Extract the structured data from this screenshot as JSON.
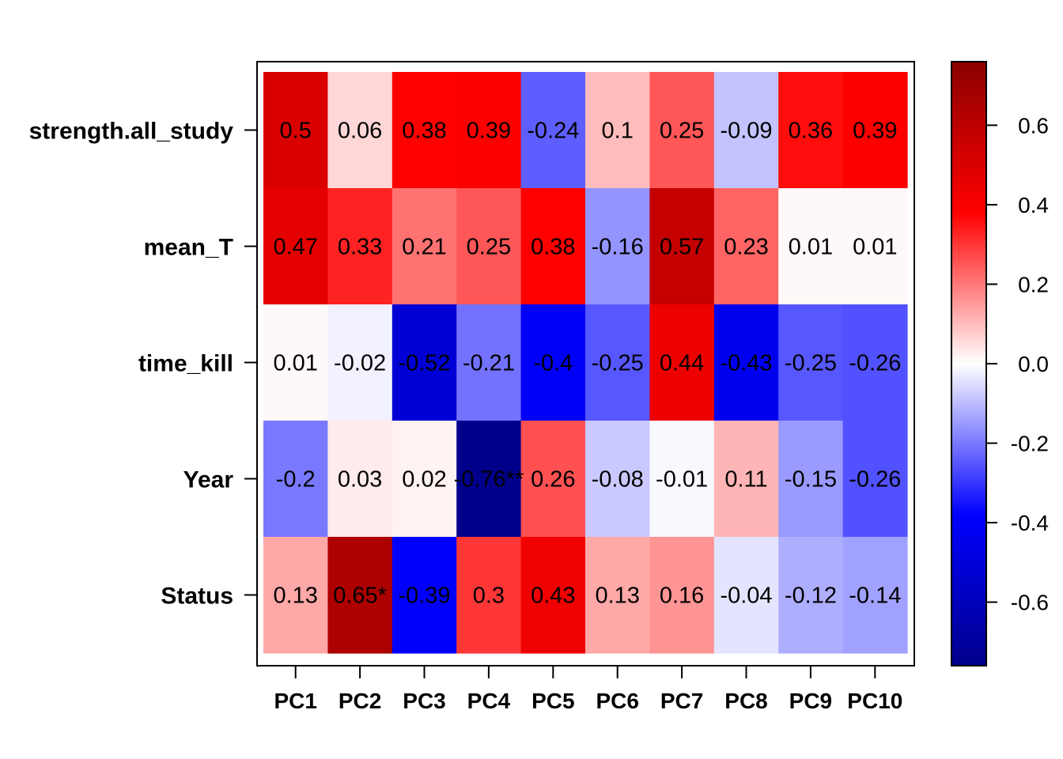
{
  "chart_data": {
    "type": "heatmap",
    "rows": [
      "strength.all_study",
      "mean_T",
      "time_kill",
      "Year",
      "Status"
    ],
    "columns": [
      "PC1",
      "PC2",
      "PC3",
      "PC4",
      "PC5",
      "PC6",
      "PC7",
      "PC8",
      "PC9",
      "PC10"
    ],
    "values": [
      [
        0.5,
        0.06,
        0.38,
        0.39,
        -0.24,
        0.1,
        0.25,
        -0.09,
        0.36,
        0.39
      ],
      [
        0.47,
        0.33,
        0.21,
        0.25,
        0.38,
        -0.16,
        0.57,
        0.23,
        0.01,
        0.01
      ],
      [
        0.01,
        -0.02,
        -0.52,
        -0.21,
        -0.4,
        -0.25,
        0.44,
        -0.43,
        -0.25,
        -0.26
      ],
      [
        -0.2,
        0.03,
        0.02,
        -0.76,
        0.26,
        -0.08,
        -0.01,
        0.11,
        -0.15,
        -0.26
      ],
      [
        0.13,
        0.65,
        -0.39,
        0.3,
        0.43,
        0.13,
        0.16,
        -0.04,
        -0.12,
        -0.14
      ]
    ],
    "cell_labels": [
      [
        "0.5",
        "0.06",
        "0.38",
        "0.39",
        "-0.24",
        "0.1",
        "0.25",
        "-0.09",
        "0.36",
        "0.39"
      ],
      [
        "0.47",
        "0.33",
        "0.21",
        "0.25",
        "0.38",
        "-0.16",
        "0.57",
        "0.23",
        "0.01",
        "0.01"
      ],
      [
        "0.01",
        "-0.02",
        "-0.52",
        "-0.21",
        "-0.4",
        "-0.25",
        "0.44",
        "-0.43",
        "-0.25",
        "-0.26"
      ],
      [
        "-0.2",
        "0.03",
        "0.02",
        "-0.76**",
        "0.26",
        "-0.08",
        "-0.01",
        "0.11",
        "-0.15",
        "-0.26"
      ],
      [
        "0.13",
        "0.65*",
        "-0.39",
        "0.3",
        "0.43",
        "0.13",
        "0.16",
        "-0.04",
        "-0.12",
        "-0.14"
      ]
    ],
    "colorbar": {
      "range": [
        -0.76,
        0.76
      ],
      "ticks": [
        0.6,
        0.4,
        0.2,
        0.0,
        -0.2,
        -0.4,
        -0.6
      ],
      "tick_labels": [
        "0.6",
        "0.4",
        "0.2",
        "0.0",
        "-0.2",
        "-0.4",
        "-0.6"
      ],
      "colors": [
        "#00008B",
        "#0000FF",
        "#FFFFFF",
        "#FF0000",
        "#8B0000"
      ]
    },
    "title": "",
    "xlabel": "",
    "ylabel": ""
  }
}
